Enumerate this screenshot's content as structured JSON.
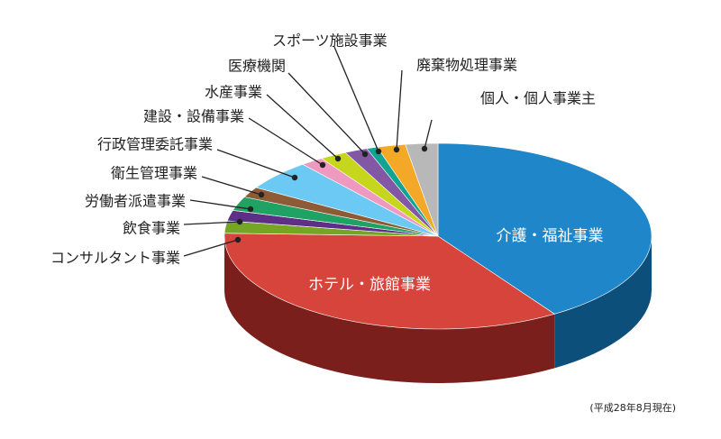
{
  "chart_data": {
    "type": "pie",
    "title": "",
    "unit": "",
    "note": "(平成28年8月現在)",
    "slices": [
      {
        "label": "介護・福祉事業",
        "value": 40.0,
        "color": "#1f87c9",
        "side": "#0b4f7a"
      },
      {
        "label": "ホテル・旅館事業",
        "value": 34.0,
        "color": "#d6443c",
        "side": "#7b1f1c"
      },
      {
        "label": "コンサルタント事業",
        "value": 2.1,
        "color": "#76a525",
        "side": "#4a6b16"
      },
      {
        "label": "飲食事業",
        "value": 1.8,
        "color": "#5d2f86",
        "side": "#3a1c55"
      },
      {
        "label": "労働者派遣事業",
        "value": 2.4,
        "color": "#1fa263",
        "side": "#126a3f"
      },
      {
        "label": "衛生管理事業",
        "value": 1.8,
        "color": "#8d5c36",
        "side": "#5a3a22"
      },
      {
        "label": "行政管理委託事業",
        "value": 5.2,
        "color": "#6bc9f4",
        "side": "#3d8bb0"
      },
      {
        "label": "建設・設備事業",
        "value": 1.7,
        "color": "#ef98c0",
        "side": "#a8637f"
      },
      {
        "label": "水産事業",
        "value": 2.0,
        "color": "#c5d61c",
        "side": "#7f8b10"
      },
      {
        "label": "医療機関",
        "value": 1.7,
        "color": "#8258a4",
        "side": "#52376a"
      },
      {
        "label": "スポーツ施設事業",
        "value": 0.8,
        "color": "#12a493",
        "side": "#0a6b60"
      },
      {
        "label": "廃棄物処理事業",
        "value": 2.1,
        "color": "#f3a927",
        "side": "#a06c14"
      },
      {
        "label": "個人・個人事業主",
        "value": 2.4,
        "color": "#b8b8b8",
        "side": "#777777"
      }
    ]
  }
}
